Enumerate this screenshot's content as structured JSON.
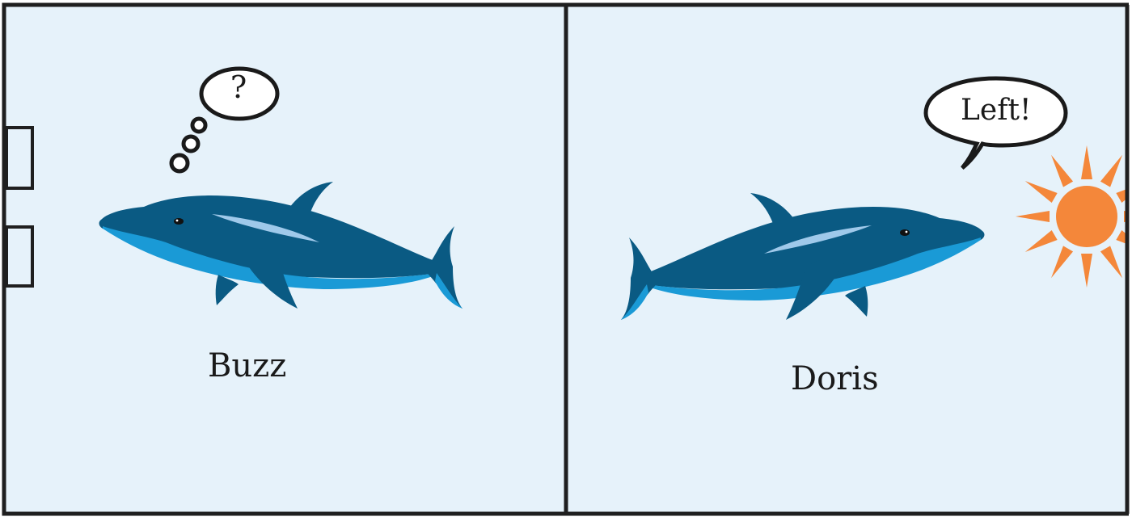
{
  "colors": {
    "tank_water": "#e6f2fa",
    "border": "#1f1f1f",
    "dolphin_dark": "#0a5a83",
    "dolphin_light": "#1a9ad6",
    "dolphin_stripe": "#9fc9ea",
    "sun": "#f4873a"
  },
  "left_tank": {
    "dolphin": {
      "name": "Buzz",
      "facing": "left"
    },
    "thought_bubble": {
      "text": "?"
    },
    "wall_openings": 2
  },
  "right_tank": {
    "dolphin": {
      "name": "Doris",
      "facing": "right"
    },
    "speech_bubble": {
      "text": "Left!"
    },
    "sun": {
      "icon": "sun-icon"
    }
  }
}
